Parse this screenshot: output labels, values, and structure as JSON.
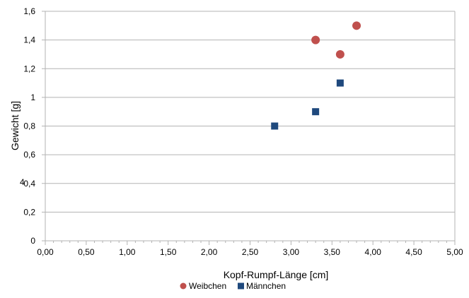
{
  "chart_data": {
    "type": "scatter",
    "xlabel": "Kopf-Rumpf-Länge [cm]",
    "ylabel": "Gewicht  [g]",
    "xlim": [
      0,
      5
    ],
    "ylim": [
      0,
      1.6
    ],
    "x_ticks": [
      "0,00",
      "0,50",
      "1,00",
      "1,50",
      "2,00",
      "2,50",
      "3,00",
      "3,50",
      "4,00",
      "4,50",
      "5,00"
    ],
    "y_ticks": [
      "0",
      "0,2",
      "0,4",
      "0,6",
      "0,8",
      "1",
      "1,2",
      "1,4",
      "1,6"
    ],
    "grid": "horizontal",
    "legend_position": "bottom",
    "stray_label": "4",
    "series": [
      {
        "name": "Weibchen",
        "marker": "circle",
        "color": "#c0504d",
        "points": [
          [
            3.3,
            1.4
          ],
          [
            3.6,
            1.3
          ],
          [
            3.8,
            1.5
          ]
        ]
      },
      {
        "name": "Männchen",
        "marker": "square",
        "color": "#1f497d",
        "points": [
          [
            2.8,
            0.8
          ],
          [
            3.3,
            0.9
          ],
          [
            3.6,
            1.1
          ]
        ]
      }
    ]
  }
}
